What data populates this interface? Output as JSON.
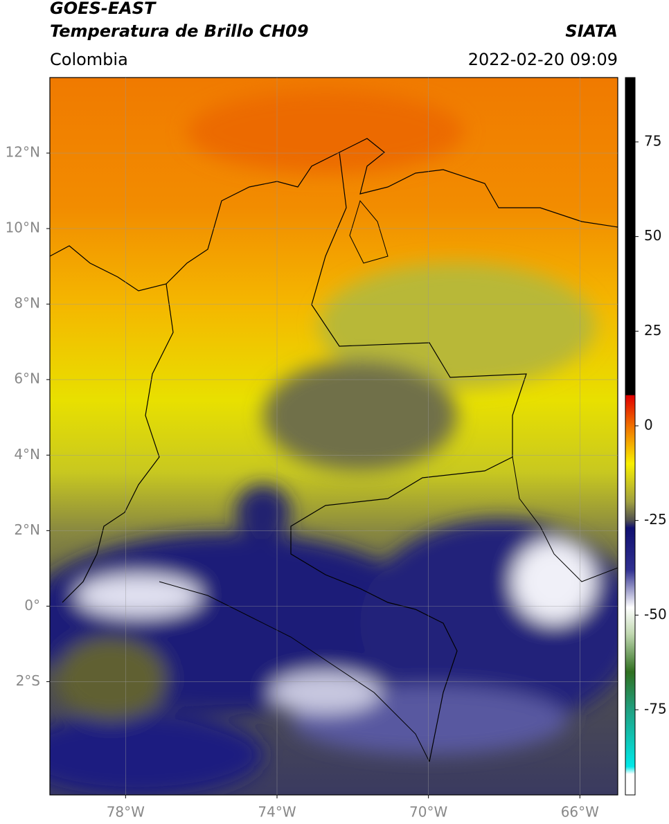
{
  "header": {
    "title_line1": "GOES-EAST",
    "title_line2": "Temperatura de Brillo CH09",
    "source": "SIATA",
    "region": "Colombia",
    "datetime": "2022-02-20 09:09"
  },
  "map": {
    "lonlim": [
      -80,
      -65
    ],
    "latlim": [
      -5,
      14
    ],
    "lonticks": [
      {
        "value": -78,
        "label": "78°W"
      },
      {
        "value": -74,
        "label": "74°W"
      },
      {
        "value": -70,
        "label": "70°W"
      },
      {
        "value": -66,
        "label": "66°W"
      }
    ],
    "latticks": [
      {
        "value": 12,
        "label": "12°N"
      },
      {
        "value": 10,
        "label": "10°N"
      },
      {
        "value": 8,
        "label": "8°N"
      },
      {
        "value": 6,
        "label": "6°N"
      },
      {
        "value": 4,
        "label": "4°N"
      },
      {
        "value": 2,
        "label": "2°N"
      },
      {
        "value": 0,
        "label": "0°"
      },
      {
        "value": -2,
        "label": "2°S"
      }
    ],
    "grid": true
  },
  "colorbar": {
    "lim": [
      -97.5,
      92
    ],
    "ticks": [
      75,
      50,
      25,
      0,
      -25,
      -50,
      -75
    ],
    "stops": [
      {
        "value": 92,
        "color": "#000000"
      },
      {
        "value": 8.2,
        "color": "#000000"
      },
      {
        "value": 8,
        "color": "#e00000"
      },
      {
        "value": 0,
        "color": "#f07000"
      },
      {
        "value": -10,
        "color": "#f8f000"
      },
      {
        "value": -20,
        "color": "#a0a040"
      },
      {
        "value": -25,
        "color": "#505050"
      },
      {
        "value": -27,
        "color": "#101070"
      },
      {
        "value": -38,
        "color": "#303090"
      },
      {
        "value": -48,
        "color": "#ffffff"
      },
      {
        "value": -55,
        "color": "#c0d8b0"
      },
      {
        "value": -65,
        "color": "#307020"
      },
      {
        "value": -75,
        "color": "#20a080"
      },
      {
        "value": -90,
        "color": "#00e8e8"
      },
      {
        "value": -92,
        "color": "#ffffff"
      },
      {
        "value": -97.5,
        "color": "#ffffff"
      }
    ]
  }
}
